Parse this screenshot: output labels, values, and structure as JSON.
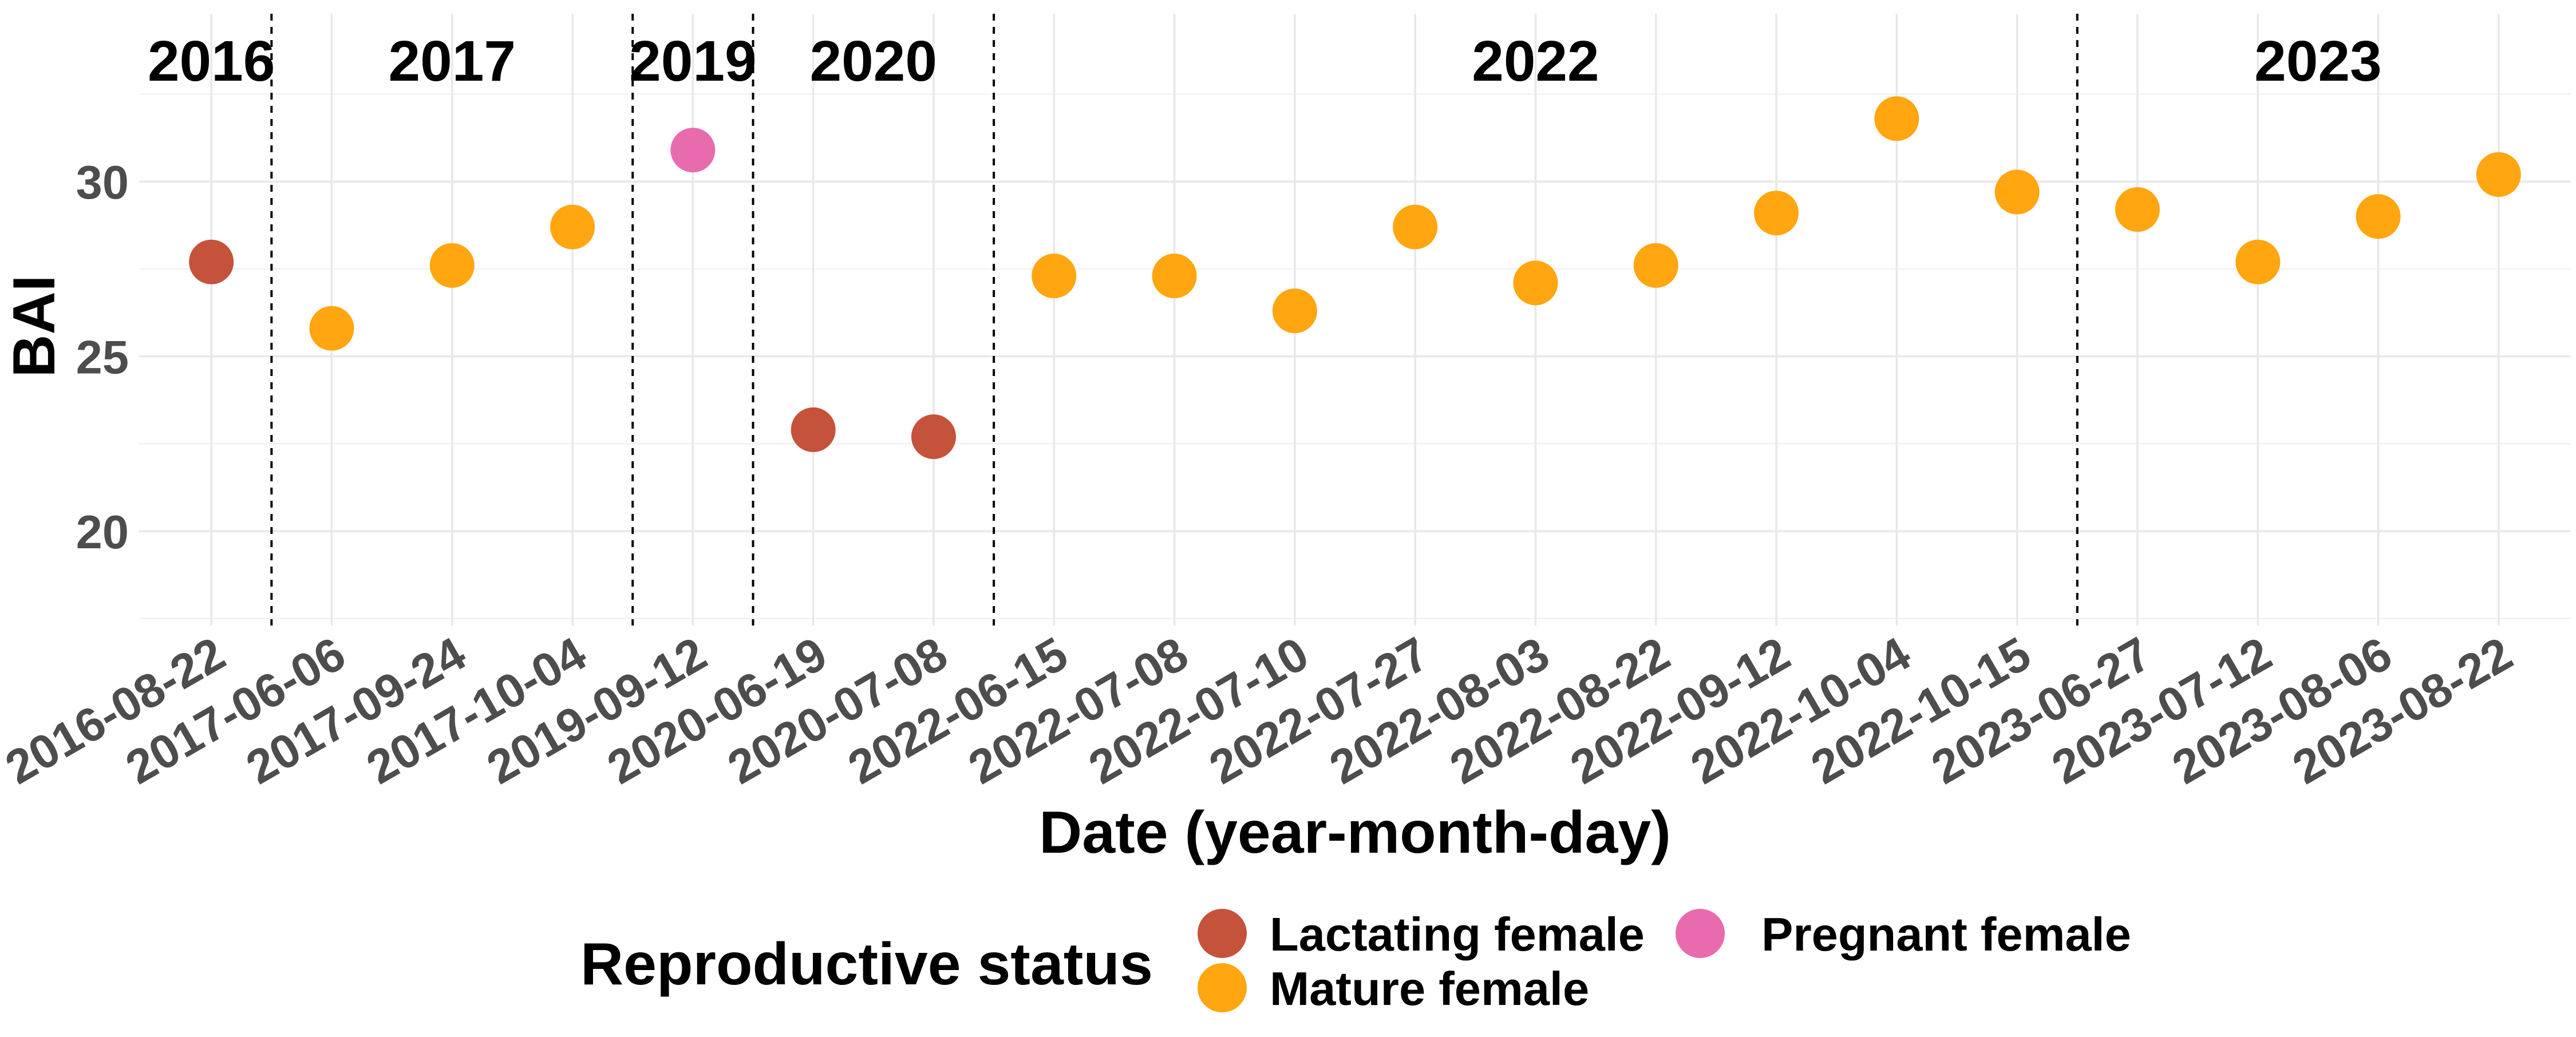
{
  "chart_data": {
    "type": "scatter",
    "xlabel": "Date (year-month-day)",
    "ylabel": "BAI",
    "categories": [
      "2016-08-22",
      "2017-06-06",
      "2017-09-24",
      "2017-10-04",
      "2019-09-12",
      "2020-06-19",
      "2020-07-08",
      "2022-06-15",
      "2022-07-08",
      "2022-07-10",
      "2022-07-27",
      "2022-08-03",
      "2022-08-22",
      "2022-09-12",
      "2022-10-04",
      "2022-10-15",
      "2023-06-27",
      "2023-07-12",
      "2023-08-06",
      "2023-08-22"
    ],
    "yticks": [
      20,
      25,
      30
    ],
    "ylim": [
      17.3,
      34.8
    ],
    "grid": true,
    "year_labels": [
      "2016",
      "2017",
      "2019",
      "2020",
      "2022",
      "2023"
    ],
    "legend": {
      "title": "Reproductive status",
      "position": "bottom"
    },
    "series": [
      {
        "name": "Lactating female",
        "color": "#C5523A",
        "values": [
          27.7,
          null,
          null,
          null,
          null,
          22.9,
          22.7,
          null,
          null,
          null,
          null,
          null,
          null,
          null,
          null,
          null,
          null,
          null,
          null,
          null
        ]
      },
      {
        "name": "Mature female",
        "color": "#FFA611",
        "values": [
          null,
          25.8,
          27.6,
          28.7,
          null,
          null,
          null,
          27.3,
          27.3,
          26.3,
          28.7,
          27.1,
          27.6,
          29.1,
          31.8,
          29.7,
          29.2,
          27.7,
          29.0,
          30.2
        ]
      },
      {
        "name": "Pregnant female",
        "color": "#E86BAE",
        "values": [
          null,
          null,
          null,
          null,
          30.9,
          null,
          null,
          null,
          null,
          null,
          null,
          null,
          null,
          null,
          null,
          null,
          null,
          null,
          null,
          null
        ]
      }
    ]
  }
}
